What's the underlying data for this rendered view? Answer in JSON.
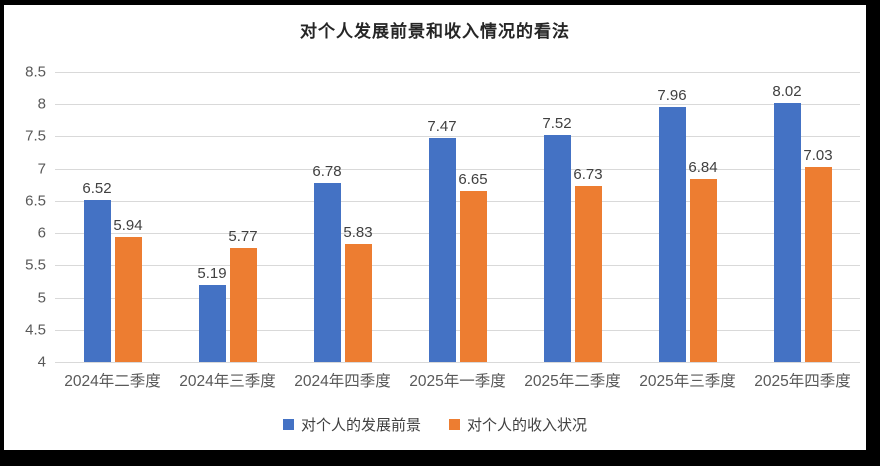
{
  "frame": {
    "border_color": "#000000",
    "background": "#ffffff"
  },
  "chart_data": {
    "type": "bar",
    "title": "对个人发展前景和收入情况的看法",
    "categories": [
      "2024年二季度",
      "2024年三季度",
      "2024年四季度",
      "2025年一季度",
      "2025年二季度",
      "2025年三季度",
      "2025年四季度"
    ],
    "series": [
      {
        "name": "对个人的发展前景",
        "color": "#4472C4",
        "values": [
          6.52,
          5.19,
          6.78,
          7.47,
          7.52,
          7.96,
          8.02
        ]
      },
      {
        "name": "对个人的收入状况",
        "color": "#ED7D31",
        "values": [
          5.94,
          5.77,
          5.83,
          6.65,
          6.73,
          6.84,
          7.03
        ]
      }
    ],
    "ylim": [
      4,
      8.5
    ],
    "y_ticks": [
      8.5,
      8,
      7.5,
      7,
      6.5,
      6,
      5.5,
      5,
      4.5,
      4
    ],
    "grid": "horizontal",
    "data_labels": true,
    "legend_position": "bottom",
    "colors": {
      "gridline": "#D9D9D9",
      "tick_label": "#595959",
      "data_label": "#404040",
      "title": "#262626",
      "legend_label": "#404040"
    }
  }
}
